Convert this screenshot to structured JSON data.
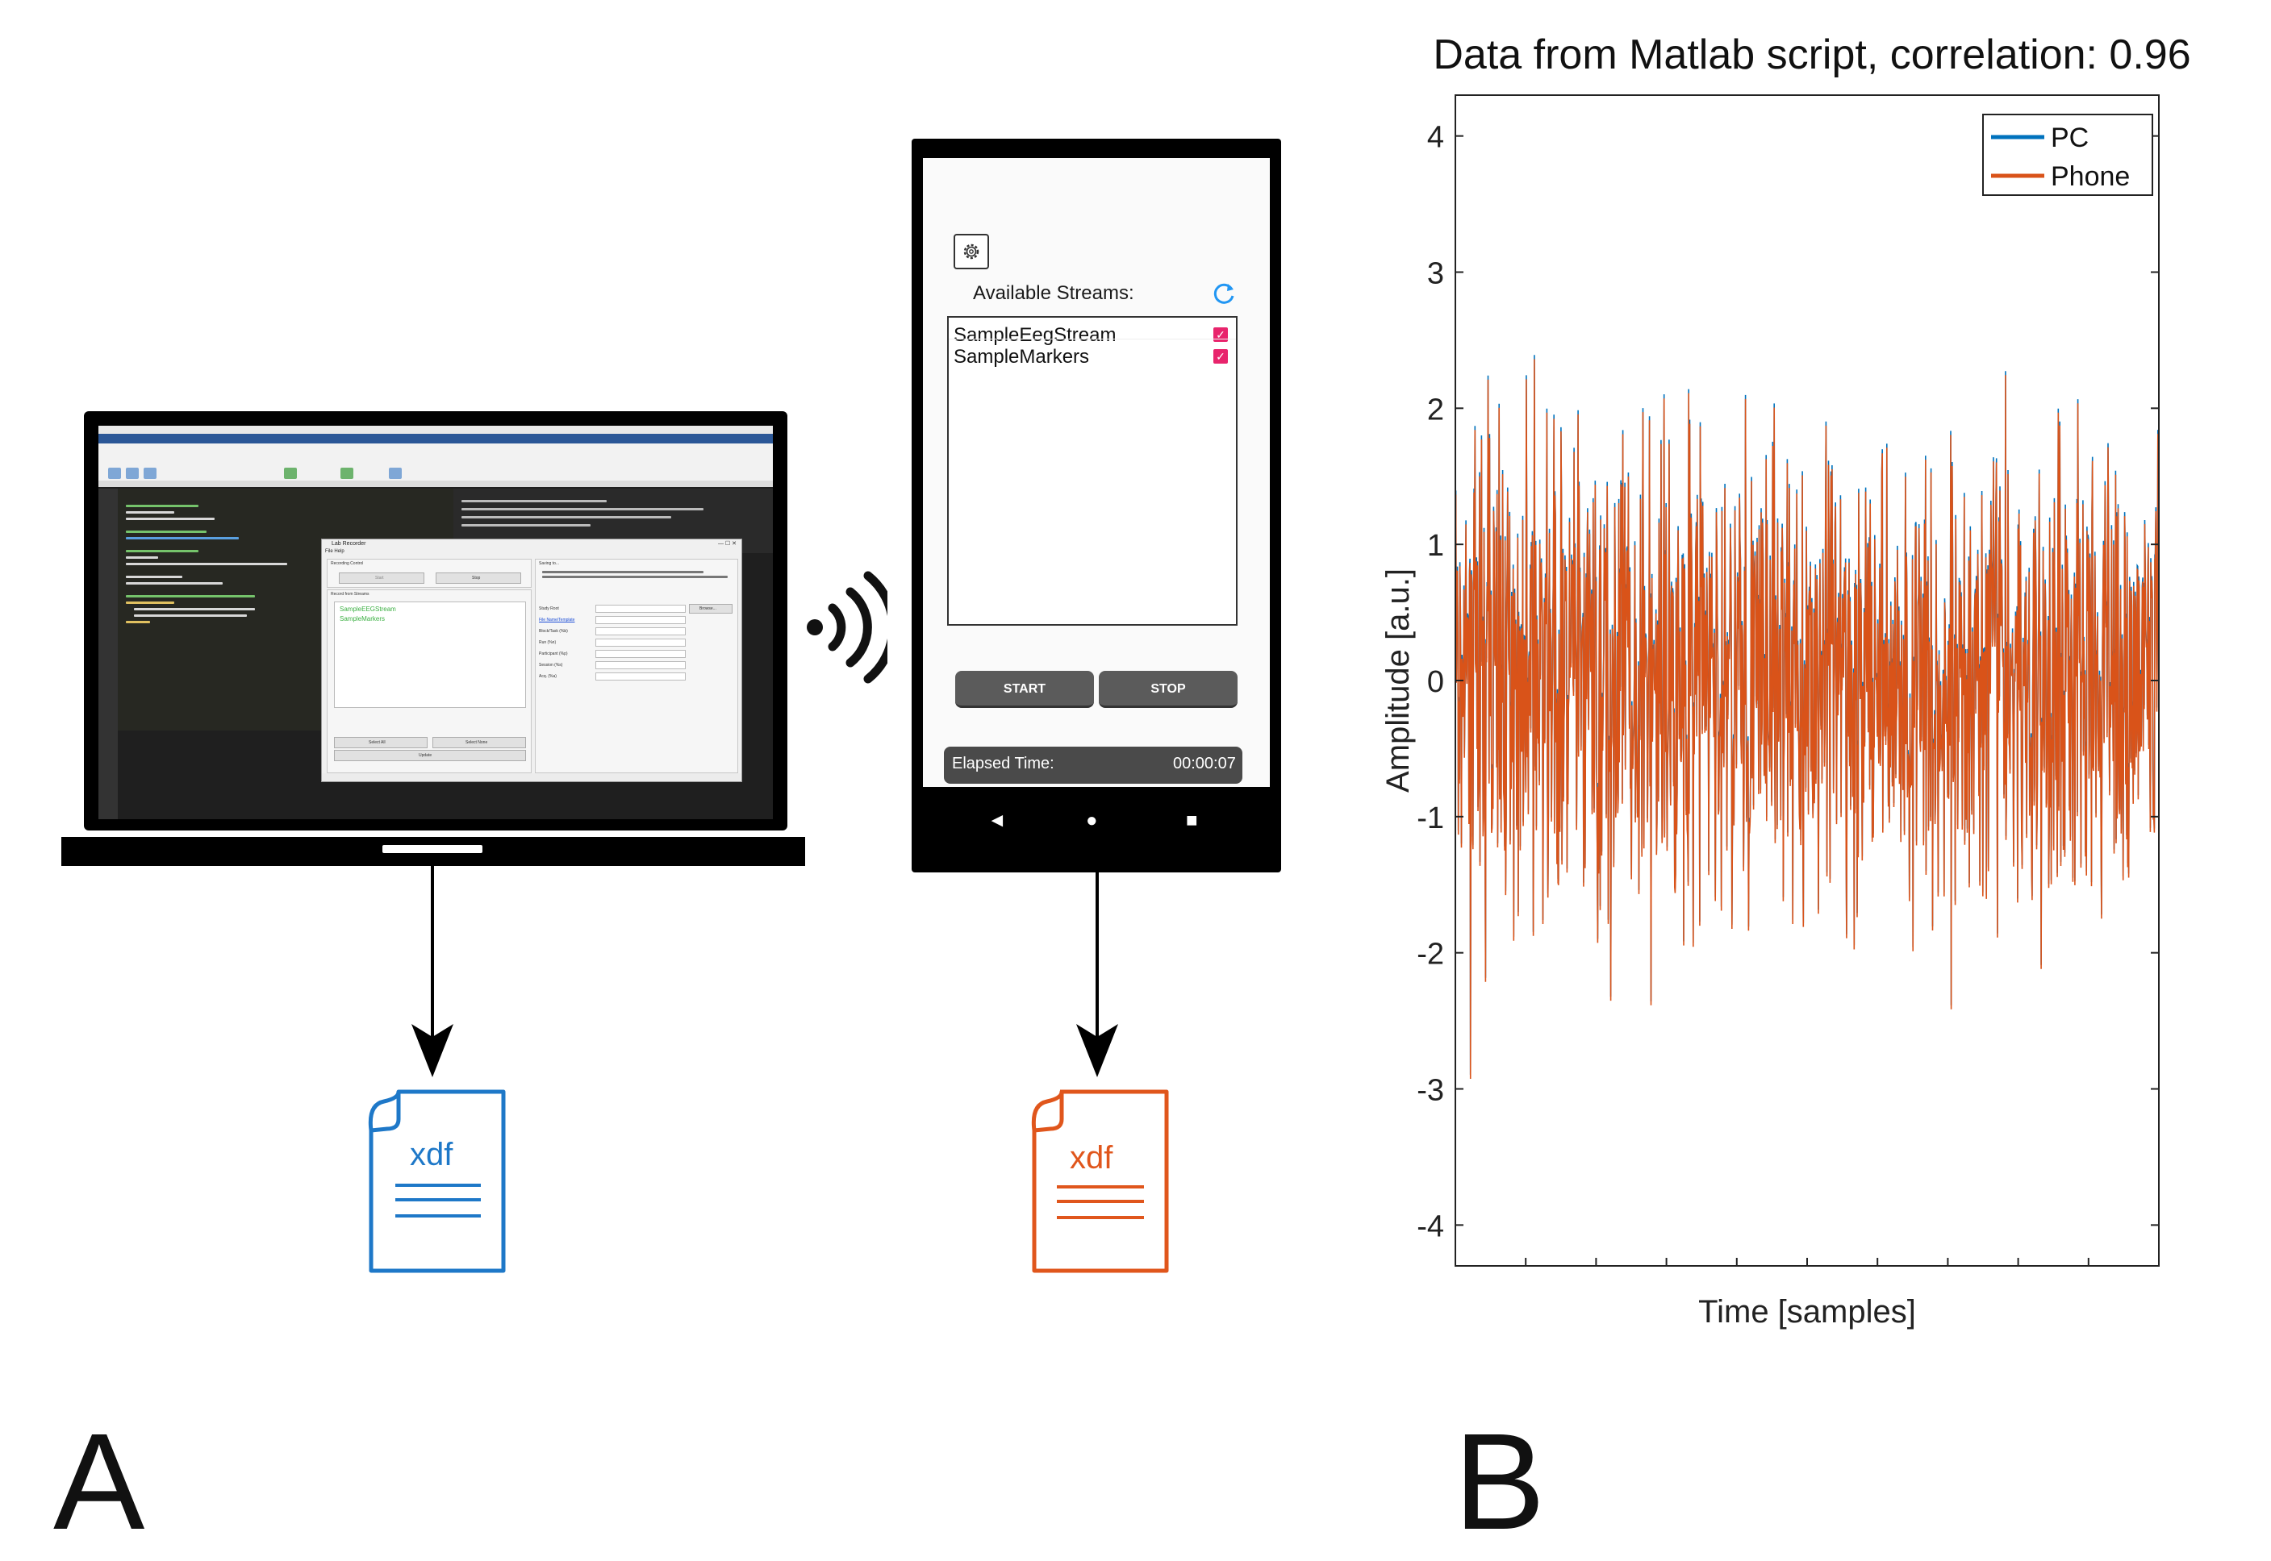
{
  "laptop": {
    "lab_recorder": {
      "title": "Lab Recorder",
      "menu": "File   Help",
      "recording_control": "Recording Control",
      "start": "Start",
      "stop": "Stop",
      "record_from_streams": "Record from Streams",
      "streams": [
        "SampleEEGStream",
        "SampleMarkers"
      ],
      "select_all": "Select All",
      "select_none": "Select None",
      "update": "Update",
      "saving_to": "Saving to...",
      "study_root": "Study Root",
      "browse": "Browse...",
      "file_name_template": "File Name/Template",
      "block_task": "Block/Task (%b)",
      "run": "Run (%n)",
      "participant": "Participant (%p)",
      "session": "Session (%s)",
      "acq": "Acq. (%a)"
    }
  },
  "phone": {
    "streams_label": "Available Streams:",
    "streams": [
      {
        "name": "SampleEegStream",
        "checked": true
      },
      {
        "name": "SampleMarkers",
        "checked": true
      }
    ],
    "start_label": "START",
    "stop_label": "STOP",
    "elapsed_label": "Elapsed Time:",
    "elapsed_value": "00:00:07",
    "nav": [
      "◄",
      "●",
      "■"
    ]
  },
  "files": {
    "pc": {
      "label": "xdf",
      "color": "#1e78c8"
    },
    "phone": {
      "label": "xdf",
      "color": "#e0561c"
    }
  },
  "panels": {
    "a": "A",
    "b": "B"
  },
  "chart_data": {
    "type": "line",
    "title": "Data from Matlab script, correlation: 0.96",
    "xlabel": "Time [samples]",
    "ylabel": "Amplitude [a.u.]",
    "ylim": [
      -4.3,
      4.3
    ],
    "yticks": [
      -4,
      -3,
      -2,
      -1,
      0,
      1,
      2,
      3,
      4
    ],
    "legend_position": "top-right",
    "series": [
      {
        "name": "PC",
        "color": "#0072bd"
      },
      {
        "name": "Phone",
        "color": "#d95319"
      }
    ]
  }
}
